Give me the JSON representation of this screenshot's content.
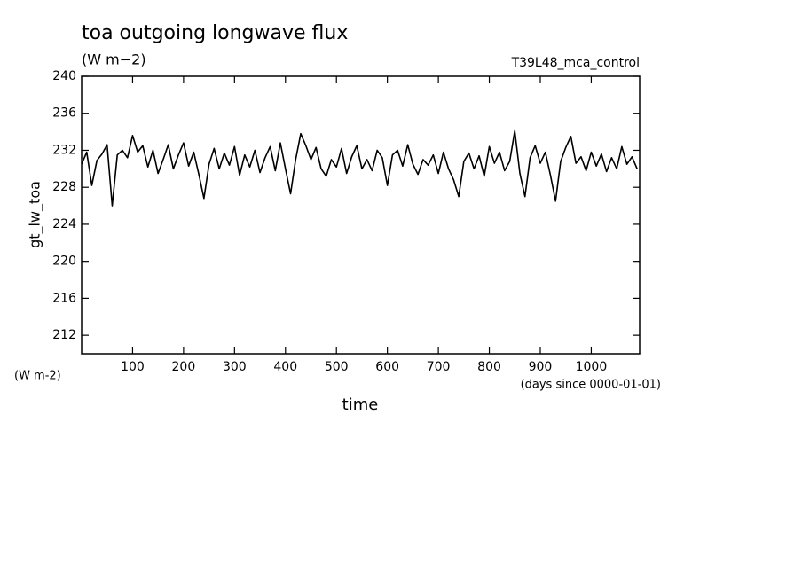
{
  "chart_data": {
    "type": "line",
    "title": "toa outgoing longwave flux",
    "subtitle": "(W m−2)",
    "annotation": "T39L48_mca_control",
    "ylabel": "gt_lw_toa",
    "yunits": "(W m-2)",
    "xunits": "(days since 0000-01-01)",
    "xlabel": "time",
    "xlim": [
      0,
      1095
    ],
    "ylim": [
      210,
      240
    ],
    "xticks": [
      100,
      200,
      300,
      400,
      500,
      600,
      700,
      800,
      900,
      1000
    ],
    "yticks": [
      212,
      216,
      220,
      224,
      228,
      232,
      236,
      240
    ],
    "grid": false,
    "series": [
      {
        "name": "gt_lw_toa",
        "color": "#000000",
        "x": [
          0,
          10,
          20,
          30,
          40,
          50,
          60,
          70,
          80,
          90,
          100,
          110,
          120,
          130,
          140,
          150,
          160,
          170,
          180,
          190,
          200,
          210,
          220,
          230,
          240,
          250,
          260,
          270,
          280,
          290,
          300,
          310,
          320,
          330,
          340,
          350,
          360,
          370,
          380,
          390,
          400,
          410,
          420,
          430,
          440,
          450,
          460,
          470,
          480,
          490,
          500,
          510,
          520,
          530,
          540,
          550,
          560,
          570,
          580,
          590,
          600,
          610,
          620,
          630,
          640,
          650,
          660,
          670,
          680,
          690,
          700,
          710,
          720,
          730,
          740,
          750,
          760,
          770,
          780,
          790,
          800,
          810,
          820,
          830,
          840,
          850,
          860,
          870,
          880,
          890,
          900,
          910,
          920,
          930,
          940,
          950,
          960,
          970,
          980,
          990,
          1000,
          1010,
          1020,
          1030,
          1040,
          1050,
          1060,
          1070,
          1080,
          1090
        ],
        "values": [
          230.5,
          231.8,
          228.2,
          230.9,
          231.6,
          232.6,
          226.0,
          231.5,
          232.0,
          231.2,
          233.6,
          231.8,
          232.5,
          230.2,
          232.0,
          229.5,
          231.0,
          232.6,
          230.0,
          231.5,
          232.8,
          230.3,
          231.8,
          229.4,
          226.8,
          230.5,
          232.2,
          230.0,
          231.7,
          230.4,
          232.4,
          229.3,
          231.5,
          230.2,
          232.0,
          229.6,
          231.2,
          232.4,
          229.8,
          232.8,
          230.0,
          227.3,
          231.0,
          233.8,
          232.5,
          231.0,
          232.3,
          230.0,
          229.2,
          231.0,
          230.2,
          232.2,
          229.5,
          231.3,
          232.5,
          230.0,
          231.0,
          229.8,
          232.0,
          231.2,
          228.2,
          231.5,
          232.0,
          230.3,
          232.6,
          230.5,
          229.4,
          231.0,
          230.4,
          231.5,
          229.5,
          231.8,
          230.0,
          228.8,
          227.0,
          230.8,
          231.7,
          230.0,
          231.4,
          229.2,
          232.4,
          230.6,
          231.8,
          229.8,
          230.8,
          234.1,
          229.5,
          227.0,
          231.2,
          232.5,
          230.6,
          231.8,
          229.3,
          226.5,
          230.8,
          232.3,
          233.5,
          230.6,
          231.3,
          229.8,
          231.8,
          230.3,
          231.6,
          229.7,
          231.2,
          230.0,
          232.4,
          230.5,
          231.3,
          230.0
        ]
      }
    ]
  }
}
